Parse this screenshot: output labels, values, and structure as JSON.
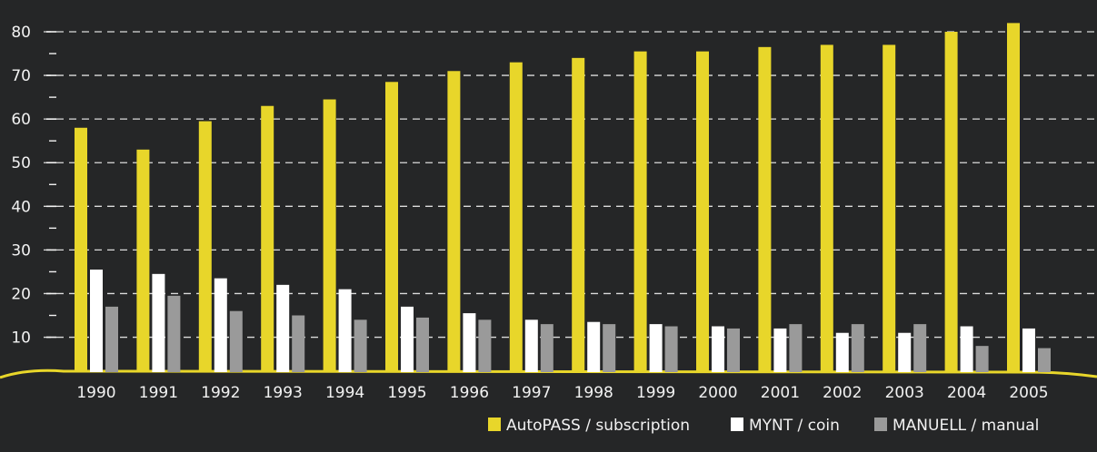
{
  "chart_data": {
    "type": "bar",
    "categories": [
      "1990",
      "1991",
      "1992",
      "1993",
      "1994",
      "1995",
      "1996",
      "1997",
      "1998",
      "1999",
      "2000",
      "2001",
      "2002",
      "2003",
      "2004",
      "2005"
    ],
    "series": [
      {
        "name": "AutoPASS / subscription",
        "color": "#e8d62a",
        "values": [
          58,
          53,
          59.5,
          63,
          64.5,
          68.5,
          71,
          73,
          74,
          75.5,
          75.5,
          76.5,
          77,
          77,
          80,
          82
        ]
      },
      {
        "name": "MYNT / coin",
        "color": "#ffffff",
        "values": [
          25.5,
          24.5,
          23.5,
          22,
          21,
          17,
          15.5,
          14,
          13.5,
          13,
          12.5,
          12,
          11,
          11,
          12.5,
          12
        ]
      },
      {
        "name": "MANUELL / manual",
        "color": "#9a9a9a",
        "values": [
          17,
          19.5,
          16,
          15,
          14,
          14.5,
          14,
          13,
          13,
          12.5,
          12,
          13,
          13,
          13,
          8,
          7.5
        ]
      }
    ],
    "y_ticks": [
      "10",
      "20",
      "30",
      "40",
      "50",
      "60",
      "70",
      "80"
    ],
    "ylim": [
      2,
      80
    ],
    "grid": true,
    "grid_style": "dashed",
    "legend_position": "bottom-right",
    "title": "",
    "xlabel": "",
    "ylabel": ""
  }
}
